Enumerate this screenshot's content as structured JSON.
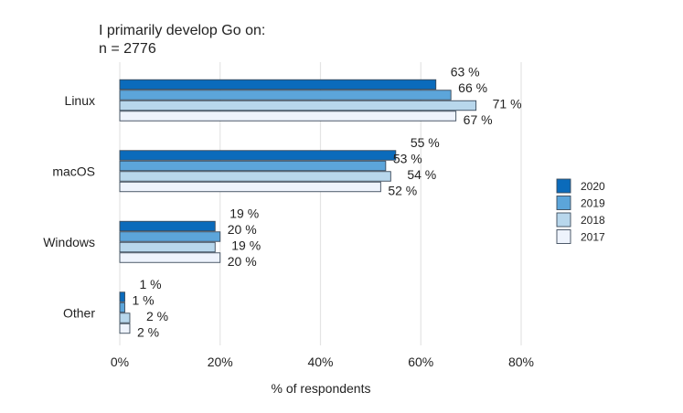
{
  "chart_data": {
    "type": "bar",
    "orientation": "horizontal",
    "title": "I primarily develop Go on:",
    "subtitle": "n = 2776",
    "xlabel": "% of respondents",
    "ylabel": "",
    "xlim": [
      0,
      80
    ],
    "x_ticks": [
      "0%",
      "20%",
      "40%",
      "60%",
      "80%"
    ],
    "x_tick_values": [
      0,
      20,
      40,
      60,
      80
    ],
    "grid": true,
    "legend_placement": "right",
    "categories": [
      "Linux",
      "macOS",
      "Windows",
      "Other"
    ],
    "series": [
      {
        "name": "2020",
        "color": "#0b6bbb",
        "values": [
          63,
          55,
          19,
          1
        ],
        "labels": [
          "63 %",
          "55 %",
          "19 %",
          "1 %"
        ]
      },
      {
        "name": "2019",
        "color": "#5ca5da",
        "values": [
          66,
          53,
          20,
          1
        ],
        "labels": [
          "66 %",
          "53 %",
          "20 %",
          "1 %"
        ]
      },
      {
        "name": "2018",
        "color": "#b8d7ec",
        "values": [
          71,
          54,
          19,
          2
        ],
        "labels": [
          "71 %",
          "54 %",
          "19 %",
          "2 %"
        ]
      },
      {
        "name": "2017",
        "color": "#eef3fc",
        "values": [
          67,
          52,
          20,
          2
        ],
        "labels": [
          "67 %",
          "52 %",
          "20 %",
          "2 %"
        ]
      }
    ]
  }
}
